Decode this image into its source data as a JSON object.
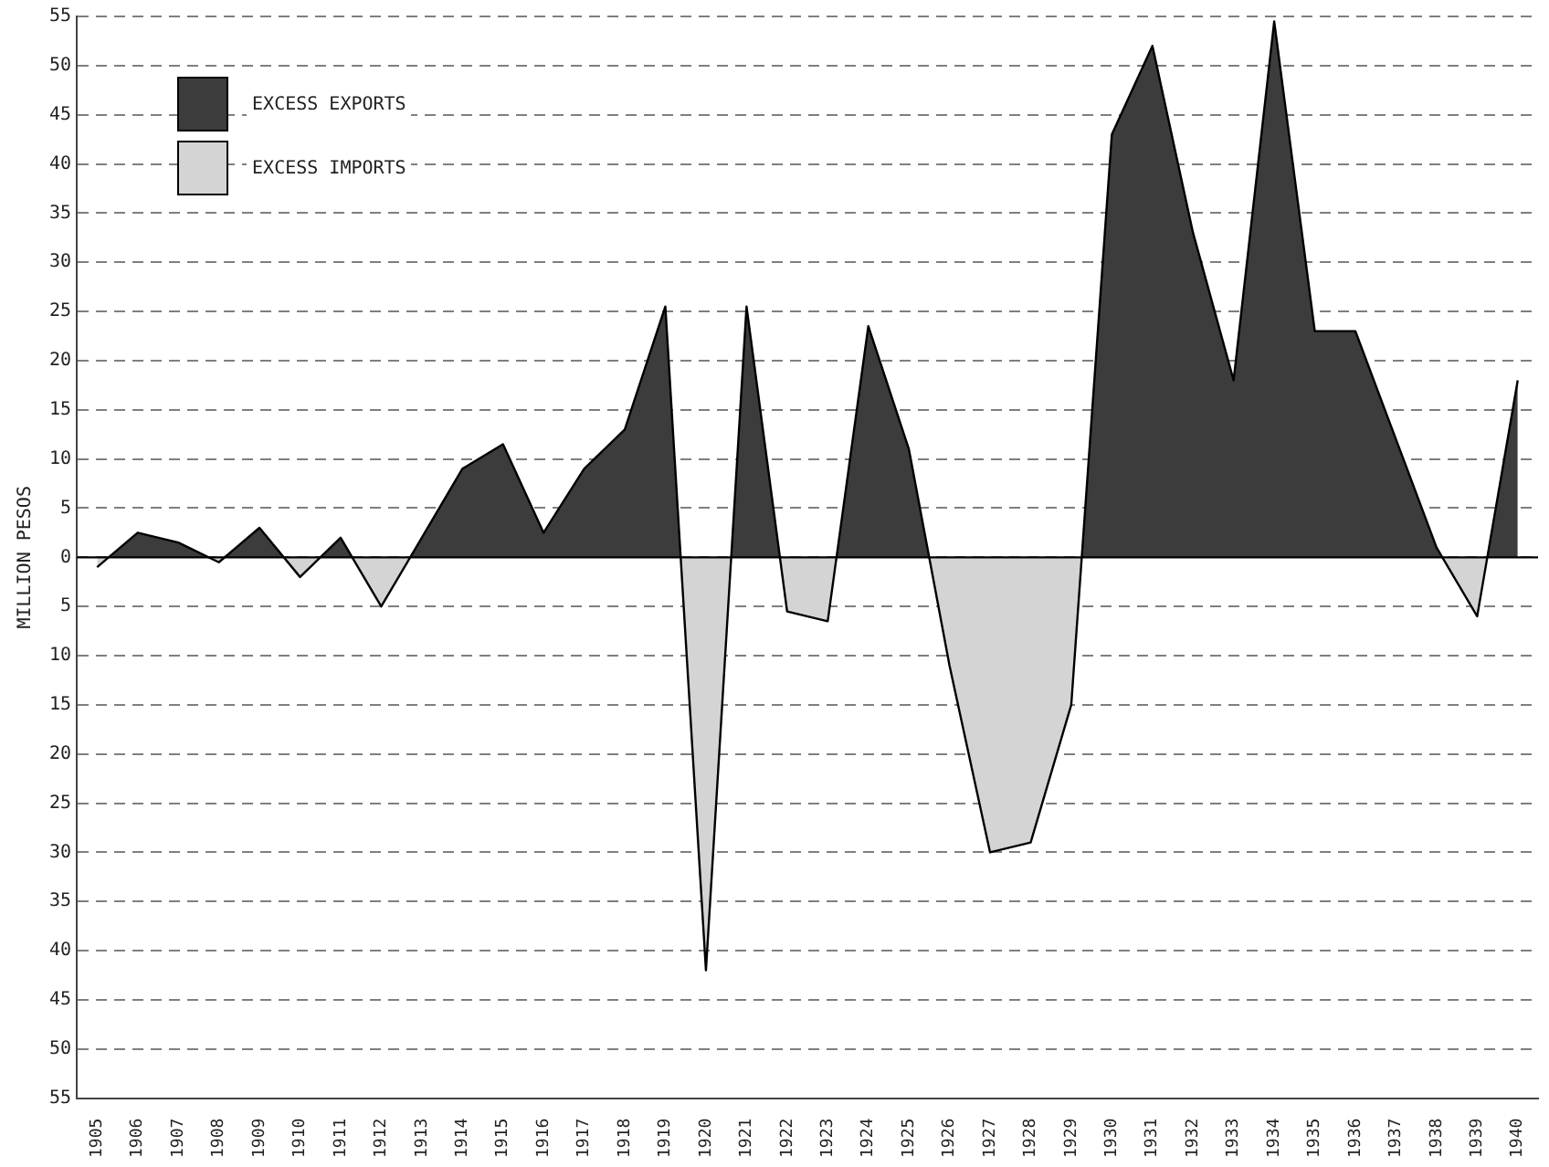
{
  "chart_data": {
    "type": "area",
    "ylabel": "MILLION PESOS",
    "categories": [
      "1905",
      "1906",
      "1907",
      "1908",
      "1909",
      "1910",
      "1911",
      "1912",
      "1913",
      "1914",
      "1915",
      "1916",
      "1917",
      "1918",
      "1919",
      "1920",
      "1921",
      "1922",
      "1923",
      "1924",
      "1925",
      "1926",
      "1927",
      "1928",
      "1929",
      "1930",
      "1931",
      "1932",
      "1933",
      "1934",
      "1935",
      "1936",
      "1937",
      "1938",
      "1939",
      "1940"
    ],
    "series": [
      {
        "values": [
          -1,
          2.5,
          1.5,
          -0.5,
          3,
          -2,
          2,
          -5,
          2,
          9,
          11.5,
          2.5,
          9,
          13,
          25.5,
          -42,
          25.5,
          -5.5,
          -6.5,
          23.5,
          11,
          -11,
          -30,
          -29,
          -15,
          43,
          52,
          33,
          18,
          54.5,
          23,
          23,
          12,
          1,
          -6,
          18
        ],
        "colors": [
          "#d4d4d4",
          "#3c3c3c",
          "#3c3c3c",
          "#d4d4d4",
          "#3c3c3c",
          "#d4d4d4",
          "#3c3c3c",
          "#d4d4d4",
          "#3c3c3c",
          "#3c3c3c",
          "#3c3c3c",
          "#3c3c3c",
          "#3c3c3c",
          "#3c3c3c",
          "#3c3c3c",
          "#d4d4d4",
          "#3c3c3c",
          "#d4d4d4",
          "#d4d4d4",
          "#3c3c3c",
          "#3c3c3c",
          "#d4d4d4",
          "#d4d4d4",
          "#d4d4d4",
          "#d4d4d4",
          "#3c3c3c",
          "#3c3c3c",
          "#3c3c3c",
          "#3c3c3c",
          "#3c3c3c",
          "#3c3c3c",
          "#3c3c3c",
          "#3c3c3c",
          "#3c3c3c",
          "#d4d4d4",
          "#3c3c3c"
        ]
      }
    ],
    "annotations": [
      "EXCESS EXPORTS",
      "EXCESS IMPORTS"
    ],
    "ylim": [
      -55,
      55
    ],
    "yticks": [
      {
        "value": -55,
        "label": "55"
      },
      {
        "value": -50,
        "label": "50"
      },
      {
        "value": -45,
        "label": "45"
      },
      {
        "value": -40,
        "label": "40"
      },
      {
        "value": -35,
        "label": "35"
      },
      {
        "value": -30,
        "label": "30"
      },
      {
        "value": -25,
        "label": "25"
      },
      {
        "value": -20,
        "label": "20"
      },
      {
        "value": -15,
        "label": "15"
      },
      {
        "value": -10,
        "label": "10"
      },
      {
        "value": -5,
        "label": "5"
      },
      0,
      5,
      10,
      15,
      20,
      25,
      30,
      35,
      40,
      45,
      50,
      55
    ],
    "grid": "y",
    "line_style": "solid",
    "marker": "none",
    "ref_lines": [
      {
        "axis": "y",
        "value": 0,
        "color": "#000000",
        "line_style": "solid"
      }
    ]
  }
}
